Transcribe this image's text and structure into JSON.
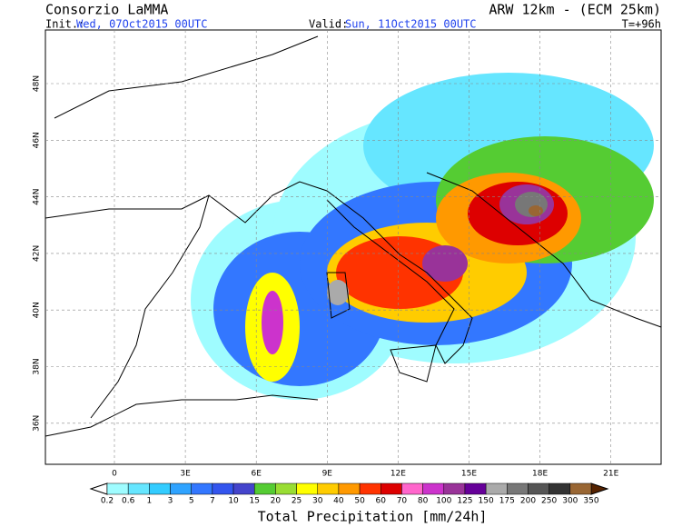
{
  "header": {
    "title": "Consorzio LaMMA",
    "model": "ARW 12km - (ECM 25km)",
    "init_label": "Init.:",
    "init": "Wed, 07Oct2015 00UTC",
    "valid_label": "Valid:",
    "valid": "Sun, 11Oct2015 00UTC",
    "lead": "T=+96h"
  },
  "map": {
    "lat_labels": [
      "48N",
      "46N",
      "44N",
      "42N",
      "40N",
      "38N",
      "36N"
    ],
    "lon_labels": [
      "0",
      "3E",
      "6E",
      "9E",
      "12E",
      "15E",
      "18E",
      "21E"
    ]
  },
  "colorbar": {
    "title": "Total Precipitation [mm/24h]",
    "levels": [
      "0.2",
      "0.6",
      "1",
      "3",
      "5",
      "7",
      "10",
      "15",
      "20",
      "25",
      "30",
      "40",
      "50",
      "60",
      "70",
      "80",
      "100",
      "125",
      "150",
      "175",
      "200",
      "250",
      "300",
      "350"
    ],
    "colors": [
      "#9ffcff",
      "#66e6ff",
      "#33ccff",
      "#2fa3ff",
      "#3377ff",
      "#3355ee",
      "#4444cc",
      "#55cc33",
      "#99dd33",
      "#ffff00",
      "#ffcc00",
      "#ff9900",
      "#ff3300",
      "#dd0000",
      "#ff66cc",
      "#cc33cc",
      "#993399",
      "#660099",
      "#aaaaaa",
      "#777777",
      "#555555",
      "#333333",
      "#996633"
    ]
  }
}
